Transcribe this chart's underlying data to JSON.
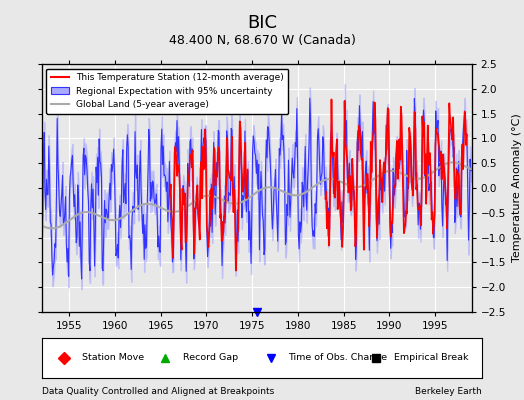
{
  "title": "BIC",
  "subtitle": "48.400 N, 68.670 W (Canada)",
  "ylabel": "Temperature Anomaly (°C)",
  "xlabel_bottom": "Data Quality Controlled and Aligned at Breakpoints",
  "xlabel_bottomright": "Berkeley Earth",
  "ylim": [
    -2.5,
    2.5
  ],
  "xlim": [
    1952,
    1999
  ],
  "xticks": [
    1955,
    1960,
    1965,
    1970,
    1975,
    1980,
    1985,
    1990,
    1995
  ],
  "yticks": [
    -2.5,
    -2,
    -1.5,
    -1,
    -0.5,
    0,
    0.5,
    1,
    1.5,
    2,
    2.5
  ],
  "bg_color": "#e8e8e8",
  "plot_bg_color": "#e8e8e8",
  "grid_color": "#ffffff",
  "regional_color": "#3333ff",
  "regional_fill_color": "#aaaaff",
  "station_color": "#ff0000",
  "global_color": "#aaaaaa",
  "legend_labels": [
    "This Temperature Station (12-month average)",
    "Regional Expectation with 95% uncertainty",
    "Global Land (5-year average)"
  ],
  "bottom_legend": [
    {
      "marker": "D",
      "color": "#ff0000",
      "label": "Station Move"
    },
    {
      "marker": "^",
      "color": "#00aa00",
      "label": "Record Gap"
    },
    {
      "marker": "v",
      "color": "#0000ff",
      "label": "Time of Obs. Change"
    },
    {
      "marker": "s",
      "color": "#000000",
      "label": "Empirical Break"
    }
  ],
  "time_obs_change_x": 1975.5
}
